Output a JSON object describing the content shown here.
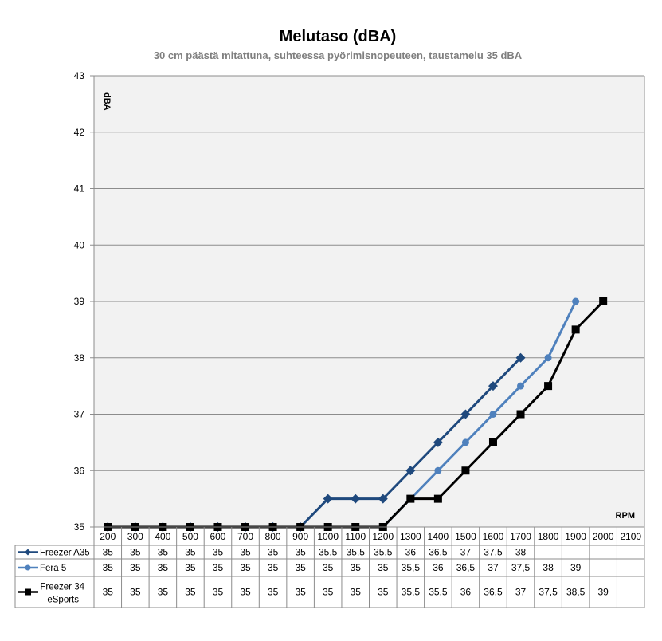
{
  "chart_data": {
    "type": "line",
    "title": "Melutaso (dBA)",
    "subtitle": "30 cm päästä mitattuna, suhteessa pyörimisnopeuteen, taustamelu 35 dBA",
    "ylabel": "dBA",
    "xlabel": "RPM",
    "ylim": [
      35,
      43
    ],
    "yticks": [
      35,
      36,
      37,
      38,
      39,
      40,
      41,
      42,
      43
    ],
    "categories": [
      "200",
      "300",
      "400",
      "500",
      "600",
      "700",
      "800",
      "900",
      "1000",
      "1100",
      "1200",
      "1300",
      "1400",
      "1500",
      "1600",
      "1700",
      "1800",
      "1900",
      "2000",
      "2100"
    ],
    "grid": true,
    "legend": "data-table",
    "series": [
      {
        "name": "Freezer A35",
        "color": "#1f497d",
        "marker": "diamond",
        "values": [
          35,
          35,
          35,
          35,
          35,
          35,
          35,
          35,
          35.5,
          35.5,
          35.5,
          36,
          36.5,
          37,
          37.5,
          38,
          null,
          null,
          null,
          null
        ],
        "labels": [
          "35",
          "35",
          "35",
          "35",
          "35",
          "35",
          "35",
          "35",
          "35,5",
          "35,5",
          "35,5",
          "36",
          "36,5",
          "37",
          "37,5",
          "38",
          "",
          "",
          "",
          ""
        ]
      },
      {
        "name": "Fera 5",
        "color": "#4f81bd",
        "marker": "circle",
        "values": [
          35,
          35,
          35,
          35,
          35,
          35,
          35,
          35,
          35,
          35,
          35,
          35.5,
          36,
          36.5,
          37,
          37.5,
          38,
          39,
          null,
          null
        ],
        "labels": [
          "35",
          "35",
          "35",
          "35",
          "35",
          "35",
          "35",
          "35",
          "35",
          "35",
          "35",
          "35,5",
          "36",
          "36,5",
          "37",
          "37,5",
          "38",
          "39",
          "",
          ""
        ]
      },
      {
        "name": "Freezer 34 eSports",
        "color": "#000000",
        "marker": "square",
        "values": [
          35,
          35,
          35,
          35,
          35,
          35,
          35,
          35,
          35,
          35,
          35,
          35.5,
          35.5,
          36,
          36.5,
          37,
          37.5,
          38.5,
          39,
          null
        ],
        "labels": [
          "35",
          "35",
          "35",
          "35",
          "35",
          "35",
          "35",
          "35",
          "35",
          "35",
          "35",
          "35,5",
          "35,5",
          "36",
          "36,5",
          "37",
          "37,5",
          "38,5",
          "39",
          ""
        ]
      }
    ]
  }
}
